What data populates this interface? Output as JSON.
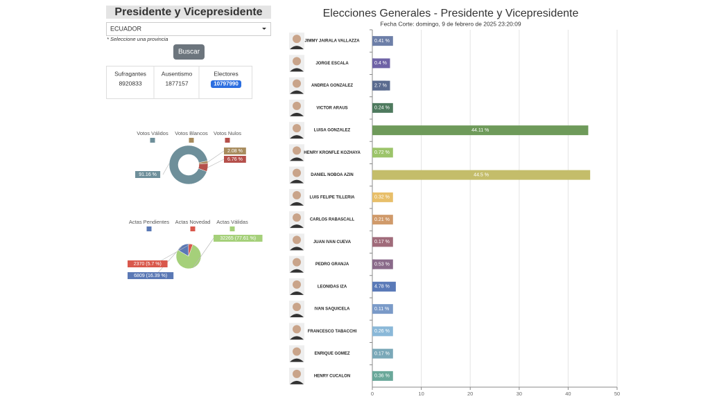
{
  "form": {
    "title": "Presidente y Vicepresidente",
    "select": "ECUADOR",
    "hint": "* Seleccione una provincia",
    "button": "Buscar"
  },
  "stats": [
    {
      "label": "Sufragantes",
      "value": 8920833
    },
    {
      "label": "Ausentismo",
      "value": 1877157
    },
    {
      "label": "Electores",
      "value": 10797990
    }
  ],
  "chart_data": [
    {
      "type": "donut",
      "categories": [
        "Votos Válidos",
        "Votos Blancos",
        "Votos Nulos"
      ],
      "values": [
        91.16,
        2.08,
        6.76
      ],
      "value_labels": [
        "91.16 %",
        "2.08 %",
        "6.76 %"
      ],
      "colors": [
        "#6e8f9a",
        "#a88c5e",
        "#b5504b"
      ]
    },
    {
      "type": "pie",
      "categories": [
        "Actas Pendientes",
        "Actas Novedad",
        "Actas Válidas"
      ],
      "values": [
        6809,
        2370,
        32265
      ],
      "value_labels": [
        "6809 (16.39 %)",
        "2370 (5.7 %)",
        "32265 (77.61 %)"
      ],
      "colors": [
        "#5a78b5",
        "#d9584c",
        "#a5d07a"
      ]
    },
    {
      "type": "bar",
      "title": "Elecciones Generales - Presidente y Vicepresidente",
      "subtitle": "Fecha Corte: domingo, 9 de febrero de 2025 23:20:09",
      "categories": [
        "JIMMY JAIRALA VALLAZZA",
        "JORGE ESCALA",
        "ANDREA GONZALEZ",
        "VICTOR ARAUS",
        "LUISA GONZALEZ",
        "HENRY KRONFLE KOZHAYA",
        "DANIEL NOBOA AZIN",
        "LUIS FELIPE TILLERIA",
        "CARLOS RABASCALL",
        "JUAN IVAN CUEVA",
        "PEDRO GRANJA",
        "LEONIDAS IZA",
        "IVAN SAQUICELA",
        "FRANCESCO TABACCHI",
        "ENRIQUE GOMEZ",
        "HENRY CUCALON"
      ],
      "values": [
        0.41,
        0.4,
        2.7,
        0.24,
        44.11,
        0.72,
        44.5,
        0.32,
        0.21,
        0.17,
        0.53,
        4.78,
        0.11,
        0.26,
        0.17,
        0.36
      ],
      "value_labels": [
        "0.41 %",
        "0.4 %",
        "2.7 %",
        "0.24 %",
        "44.11 %",
        "0.72 %",
        "44.5 %",
        "0.32 %",
        "0.21 %",
        "0.17 %",
        "0.53 %",
        "4.78 %",
        "0.11 %",
        "0.26 %",
        "0.17 %",
        "0.36 %"
      ],
      "colors": [
        "#6d7fa8",
        "#6f63a6",
        "#5a6b8f",
        "#4e7a5e",
        "#6e9a5a",
        "#9cc46a",
        "#c4bd6a",
        "#e8bf6a",
        "#d09a6a",
        "#a06b7a",
        "#8a6a8a",
        "#5a7ab8",
        "#7a9ac8",
        "#8ab8d8",
        "#7aa8b8",
        "#6aa89a"
      ],
      "xlim": [
        0,
        50
      ],
      "xticks": [
        0,
        10,
        20,
        30,
        40,
        50
      ],
      "grid": true
    }
  ]
}
